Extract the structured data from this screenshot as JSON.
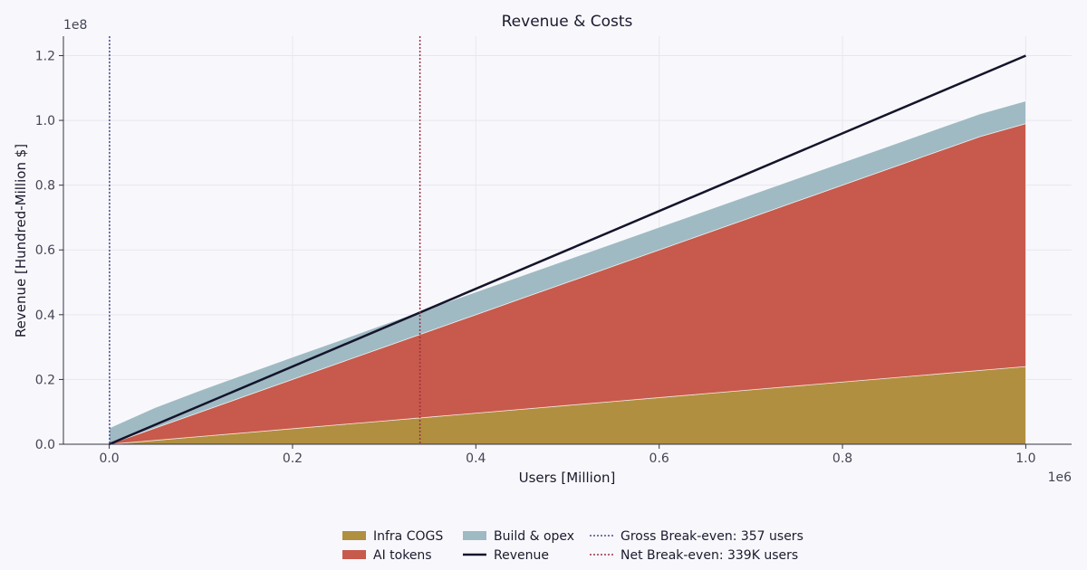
{
  "chart_data": {
    "type": "area",
    "title": "Revenue & Costs",
    "xlabel": "Users [Million]",
    "ylabel": "Revenue [Hundred-Million $]",
    "x_offset_label": "1e6",
    "y_offset_label": "1e8",
    "xlim": [
      -0.05,
      1.05
    ],
    "ylim": [
      0,
      1.26
    ],
    "x_ticks": [
      "0.0",
      "0.2",
      "0.4",
      "0.6",
      "0.8",
      "1.0"
    ],
    "y_ticks": [
      "0.0",
      "0.2",
      "0.4",
      "0.6",
      "0.8",
      "1.0",
      "1.2"
    ],
    "grid": true,
    "x": [
      0,
      0.05,
      0.1,
      0.15,
      0.2,
      0.25,
      0.3,
      0.35,
      0.4,
      0.45,
      0.5,
      0.55,
      0.6,
      0.65,
      0.7,
      0.75,
      0.8,
      0.85,
      0.9,
      0.95,
      1.0
    ],
    "stacked_series": [
      {
        "name": "Infra COGS",
        "color": "#b08f40",
        "values": [
          0,
          0.012,
          0.024,
          0.036,
          0.048,
          0.06,
          0.072,
          0.084,
          0.096,
          0.108,
          0.12,
          0.132,
          0.144,
          0.156,
          0.168,
          0.18,
          0.192,
          0.204,
          0.216,
          0.228,
          0.24
        ]
      },
      {
        "name": "AI tokens",
        "color": "#c75a4c",
        "values": [
          0,
          0.038,
          0.076,
          0.114,
          0.152,
          0.19,
          0.228,
          0.266,
          0.304,
          0.342,
          0.38,
          0.418,
          0.456,
          0.494,
          0.532,
          0.57,
          0.608,
          0.646,
          0.684,
          0.722,
          0.75
        ]
      },
      {
        "name": "Build & opex",
        "color": "#9fbac3",
        "values": [
          0.05,
          0.063,
          0.067,
          0.068,
          0.069,
          0.069,
          0.07,
          0.07,
          0.07,
          0.07,
          0.07,
          0.07,
          0.07,
          0.07,
          0.07,
          0.07,
          0.07,
          0.07,
          0.07,
          0.07,
          0.07
        ]
      }
    ],
    "line_series": [
      {
        "name": "Revenue",
        "color": "#14142b",
        "x": [
          0,
          1.0
        ],
        "values": [
          0,
          1.2
        ]
      }
    ],
    "vlines": [
      {
        "name": "Gross Break-even: 357 users",
        "color": "#4a4a8c",
        "x": 0.000357
      },
      {
        "name": "Net Break-even: 339K users",
        "color": "#9e3045",
        "x": 0.339
      }
    ],
    "legend_placement": "bottom-center"
  }
}
